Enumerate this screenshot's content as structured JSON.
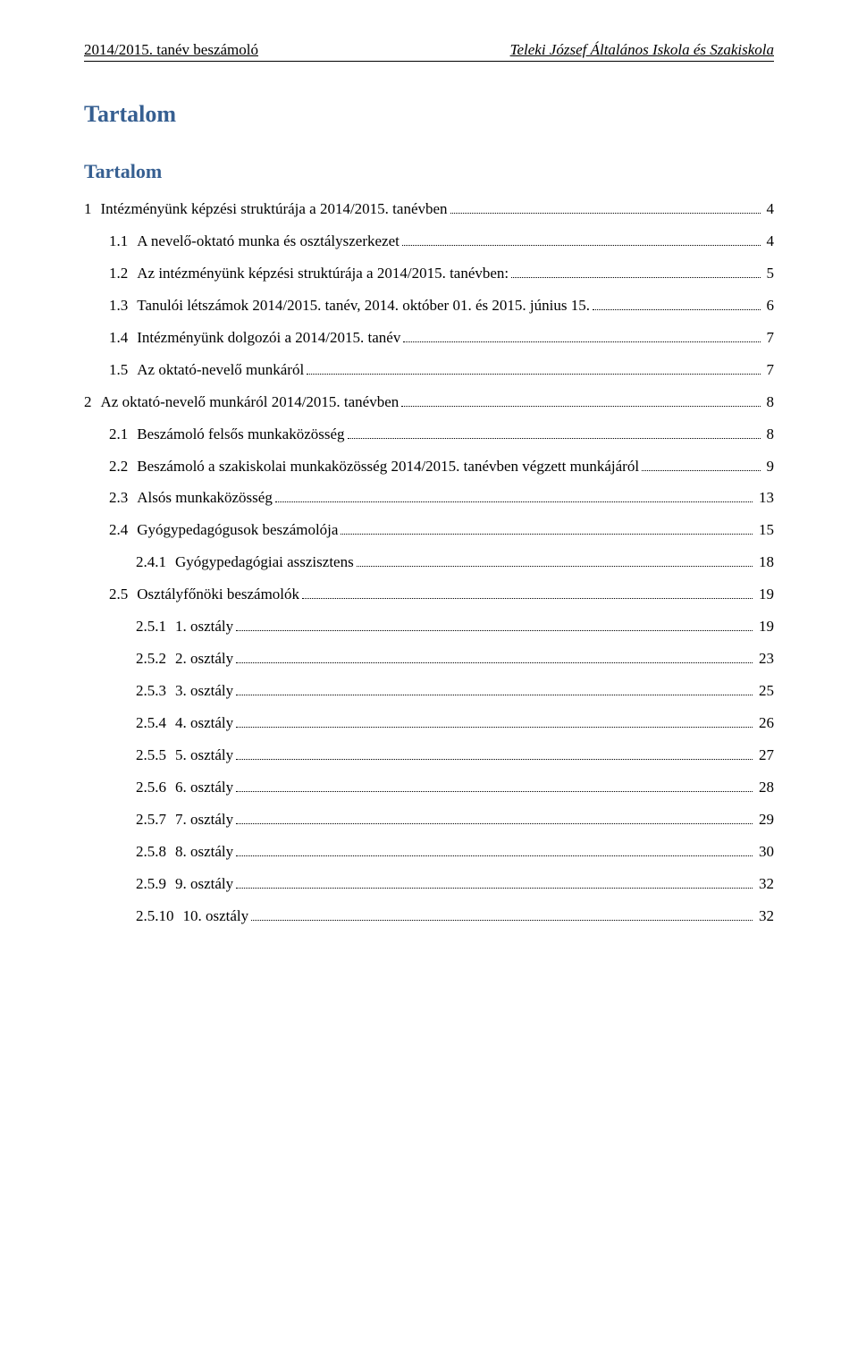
{
  "header": {
    "left": "2014/2015. tanév beszámoló",
    "right": "Teleki József Általános Iskola és Szakiskola"
  },
  "title": "Tartalom",
  "subtitle": "Tartalom",
  "colors": {
    "heading": "#365f91",
    "text": "#000000",
    "background": "#ffffff"
  },
  "toc": [
    {
      "level": 1,
      "num": "1",
      "label": "Intézményünk képzési struktúrája a 2014/2015. tanévben",
      "page": "4"
    },
    {
      "level": 2,
      "num": "1.1",
      "label": "A nevelő-oktató munka és osztályszerkezet",
      "page": "4"
    },
    {
      "level": 2,
      "num": "1.2",
      "label": "Az intézményünk képzési struktúrája a 2014/2015. tanévben:",
      "page": "5"
    },
    {
      "level": 2,
      "num": "1.3",
      "label": "Tanulói létszámok 2014/2015. tanév, 2014. október 01. és 2015. június 15.",
      "page": "6"
    },
    {
      "level": 2,
      "num": "1.4",
      "label": "Intézményünk dolgozói a 2014/2015. tanév",
      "page": "7"
    },
    {
      "level": 2,
      "num": "1.5",
      "label": "Az oktató-nevelő munkáról",
      "page": "7"
    },
    {
      "level": 1,
      "num": "2",
      "label": "Az oktató-nevelő munkáról 2014/2015. tanévben",
      "page": "8"
    },
    {
      "level": 2,
      "num": "2.1",
      "label": "Beszámoló felsős munkaközösség",
      "page": "8"
    },
    {
      "level": 2,
      "num": "2.2",
      "label": "Beszámoló a szakiskolai munkaközösség 2014/2015. tanévben végzett munkájáról",
      "page": "9"
    },
    {
      "level": 2,
      "num": "2.3",
      "label": "Alsós munkaközösség",
      "page": "13"
    },
    {
      "level": 2,
      "num": "2.4",
      "label": "Gyógypedagógusok beszámolója",
      "page": "15"
    },
    {
      "level": 3,
      "num": "2.4.1",
      "label": "Gyógypedagógiai asszisztens",
      "page": "18"
    },
    {
      "level": 2,
      "num": "2.5",
      "label": "Osztályfőnöki beszámolók",
      "page": "19"
    },
    {
      "level": 3,
      "num": "2.5.1",
      "label": "1. osztály",
      "page": "19"
    },
    {
      "level": 3,
      "num": "2.5.2",
      "label": "2. osztály",
      "page": "23"
    },
    {
      "level": 3,
      "num": "2.5.3",
      "label": "3. osztály",
      "page": "25"
    },
    {
      "level": 3,
      "num": "2.5.4",
      "label": "4. osztály",
      "page": "26"
    },
    {
      "level": 3,
      "num": "2.5.5",
      "label": "5. osztály",
      "page": "27"
    },
    {
      "level": 3,
      "num": "2.5.6",
      "label": "6. osztály",
      "page": "28"
    },
    {
      "level": 3,
      "num": "2.5.7",
      "label": "7. osztály",
      "page": "29"
    },
    {
      "level": 3,
      "num": "2.5.8",
      "label": "8. osztály",
      "page": "30"
    },
    {
      "level": 3,
      "num": "2.5.9",
      "label": "9. osztály",
      "page": "32"
    },
    {
      "level": 3,
      "num": "2.5.10",
      "label": "10. osztály",
      "page": "32"
    }
  ]
}
